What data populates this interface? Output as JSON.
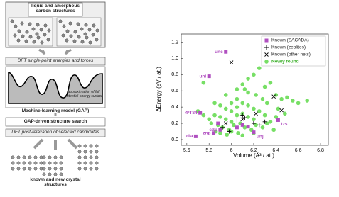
{
  "diagram": {
    "input": "liquid and amorphous carbon structures",
    "step1": "DFT single-point energies and forces",
    "surface_note": "approximation of full potential-energy surface",
    "model": "Machine-learning model (GAP)",
    "search": "GAP-driven structure search",
    "step2": "DFT post-relaxation of selected candidates",
    "output": "known and new crystal structures"
  },
  "chart_data": {
    "type": "scatter",
    "xlabel": "Volume (Å³ / at.)",
    "ylabel": "ΔEnergy (eV / at.)",
    "xlim": [
      5.55,
      6.87
    ],
    "ylim": [
      -0.07,
      1.3
    ],
    "xticks": [
      5.6,
      5.8,
      6,
      6.2,
      6.4,
      6.6,
      6.8
    ],
    "yticks": [
      {
        "value": 0,
        "label": "0.0"
      },
      0.2,
      0.4,
      0.6,
      0.8,
      {
        "value": 1,
        "label": "1.0"
      },
      1.2
    ],
    "grid": false,
    "legend": "upper right",
    "series": [
      {
        "name": "Known (SACADA)",
        "color": "#b04fc0",
        "marker": "square",
        "x": [
          5.95,
          5.8,
          5.72,
          5.68,
          5.84,
          5.9,
          6.2,
          6.42,
          5.88,
          6.05,
          6.1,
          6.15
        ],
        "values": [
          1.08,
          0.78,
          0.33,
          0.04,
          0.08,
          0.12,
          0.09,
          0.24,
          0.2,
          0.15,
          0.18,
          0.16
        ],
        "labels": [
          "unc",
          "uni",
          "4³T84",
          "dia",
          "znp",
          "cdp",
          "unj",
          "tzs",
          null,
          null,
          null,
          null
        ]
      },
      {
        "name": "Known (zeolites)",
        "color": "#000000",
        "marker": "plus",
        "x": [
          5.92,
          6.1,
          6.12,
          6.2,
          6.25,
          6.3,
          5.98,
          6.05
        ],
        "values": [
          0.15,
          0.3,
          0.27,
          0.2,
          0.18,
          0.22,
          0.1,
          0.24
        ]
      },
      {
        "name": "Known (other nets)",
        "color": "#000000",
        "marker": "x",
        "x": [
          6,
          6.38,
          6.45,
          6.22,
          6.1,
          5.95
        ],
        "values": [
          0.95,
          0.53,
          0.36,
          0.32,
          0.25,
          0.2
        ]
      },
      {
        "name": "Newly found",
        "color": "#5fd94a",
        "marker": "circle",
        "x": [
          5.75,
          5.95,
          6.05,
          6.1,
          6.2,
          6.25,
          6.3,
          6.35,
          6.15,
          6.22,
          6.28,
          6.32,
          6.4,
          6.45,
          6.5,
          6.55,
          6.6,
          6.68,
          5.9,
          5.95,
          6,
          6.05,
          6.1,
          6.15,
          6.2,
          6.25,
          5.85,
          5.9,
          5.95,
          6,
          6.05,
          6.1,
          6.15,
          6.2,
          6.3,
          6.35,
          6.4,
          5.7,
          5.75,
          5.8,
          5.82,
          5.88,
          5.92,
          5.98,
          6.02,
          6.08,
          6.12,
          6.18,
          6.22,
          6.28,
          6.32,
          6.38,
          5.86,
          5.9,
          5.96,
          6,
          6.06,
          6.1,
          6.2,
          6.05,
          6.15,
          6,
          6.12,
          5.85,
          6.42,
          6.48,
          6.3
        ],
        "values": [
          0.7,
          0.55,
          0.62,
          0.68,
          0.8,
          0.88,
          0.65,
          0.7,
          0.75,
          0.55,
          0.5,
          0.45,
          0.55,
          0.5,
          0.52,
          0.48,
          0.45,
          0.48,
          0.42,
          0.38,
          0.35,
          0.4,
          0.45,
          0.42,
          0.38,
          0.35,
          0.3,
          0.28,
          0.25,
          0.22,
          0.3,
          0.32,
          0.28,
          0.25,
          0.3,
          0.22,
          0.28,
          0.35,
          0.3,
          0.25,
          0.2,
          0.18,
          0.15,
          0.12,
          0.18,
          0.2,
          0.15,
          0.12,
          0.18,
          0.15,
          0.2,
          0.12,
          0.1,
          0.08,
          0.06,
          0.1,
          0.08,
          0.05,
          0.08,
          0.5,
          0.58,
          0.45,
          0.62,
          0.45,
          0.38,
          0.32,
          0.95
        ]
      }
    ]
  }
}
